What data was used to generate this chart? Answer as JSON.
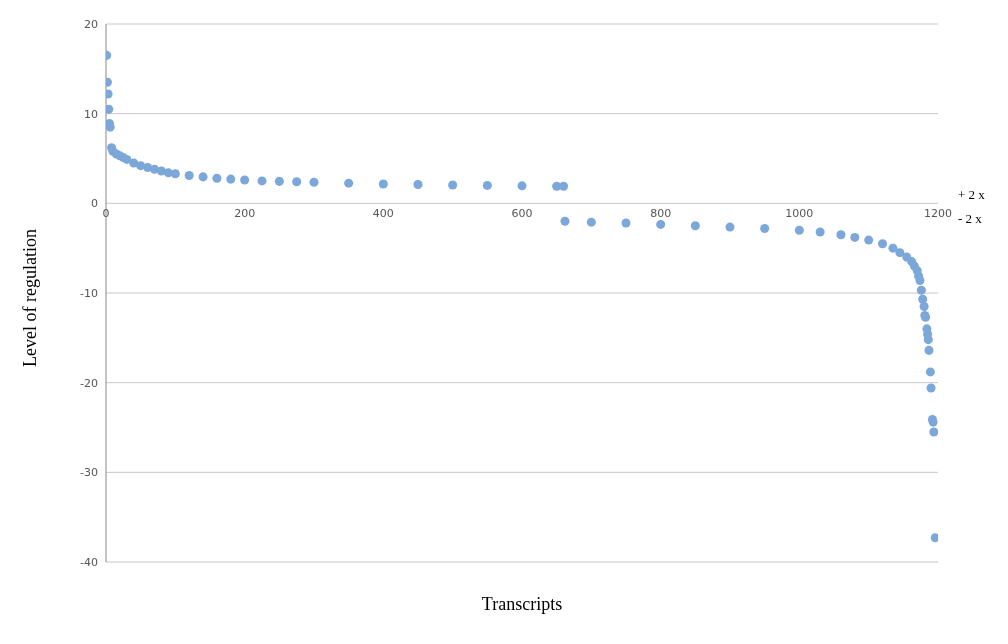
{
  "chart_data": {
    "type": "scatter",
    "xlabel": "Transcripts",
    "ylabel": "Level of regulation",
    "annotations": [
      "+ 2 x",
      "- 2 x"
    ],
    "xlim": [
      0,
      1200
    ],
    "xticks": [
      0,
      200,
      400,
      600,
      800,
      1000,
      1200
    ],
    "ylim": [
      -40,
      20
    ],
    "yticks": [
      -40,
      -30,
      -20,
      -10,
      0,
      10,
      20
    ],
    "grid": "y",
    "marker": "circle",
    "legend": false,
    "series": [
      {
        "color": "#7ba7d9",
        "x": [
          1,
          2,
          3,
          4,
          5,
          6,
          8,
          10,
          15,
          20,
          25,
          30,
          40,
          50,
          60,
          70,
          80,
          90,
          100,
          120,
          140,
          160,
          180,
          200,
          225,
          250,
          275,
          300,
          350,
          400,
          450,
          500,
          550,
          600,
          650,
          660,
          662,
          700,
          750,
          800,
          850,
          900,
          950,
          1000,
          1030,
          1060,
          1080,
          1100,
          1120,
          1135,
          1145,
          1155,
          1162,
          1166,
          1170,
          1172,
          1174,
          1176,
          1178,
          1180,
          1181,
          1182,
          1184,
          1185,
          1186,
          1187,
          1189,
          1190,
          1192,
          1193,
          1194,
          1196
        ],
        "values": [
          16.5,
          13.5,
          12.2,
          10.5,
          8.9,
          8.5,
          6.2,
          5.8,
          5.5,
          5.3,
          5.1,
          4.9,
          4.5,
          4.2,
          4.0,
          3.8,
          3.6,
          3.4,
          3.3,
          3.1,
          2.95,
          2.8,
          2.7,
          2.6,
          2.5,
          2.45,
          2.4,
          2.35,
          2.25,
          2.15,
          2.1,
          2.05,
          2.0,
          1.95,
          1.9,
          1.9,
          -2.0,
          -2.1,
          -2.2,
          -2.35,
          -2.5,
          -2.65,
          -2.8,
          -3.0,
          -3.2,
          -3.5,
          -3.8,
          -4.1,
          -4.5,
          -5.0,
          -5.5,
          -6.0,
          -6.5,
          -7.0,
          -7.5,
          -8.1,
          -8.6,
          -9.7,
          -10.7,
          -11.5,
          -12.5,
          -12.7,
          -14.0,
          -14.6,
          -15.2,
          -16.4,
          -18.8,
          -20.6,
          -24.1,
          -24.4,
          -25.5,
          -37.3
        ]
      }
    ]
  }
}
